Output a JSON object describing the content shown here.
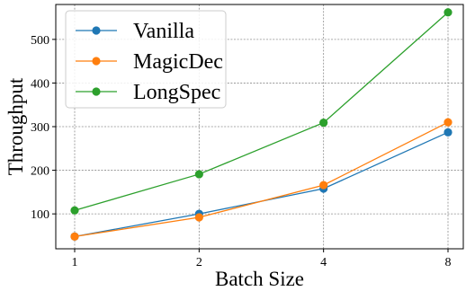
{
  "chart_data": {
    "type": "line",
    "xlabel": "Batch Size",
    "ylabel": "Throughput",
    "categories": [
      "1",
      "2",
      "4",
      "8"
    ],
    "x": [
      1,
      2,
      4,
      8
    ],
    "xscale": "log2",
    "xticks": [
      "1",
      "2",
      "4",
      "8"
    ],
    "yticks": [
      100,
      200,
      300,
      400,
      500
    ],
    "ylim": [
      20,
      580
    ],
    "grid": true,
    "legend": "top-left",
    "series": [
      {
        "name": "Vanilla",
        "color": "#1f77b4",
        "values": [
          48,
          100,
          158,
          287
        ]
      },
      {
        "name": "MagicDec",
        "color": "#ff7f0e",
        "values": [
          48,
          92,
          166,
          310
        ]
      },
      {
        "name": "LongSpec",
        "color": "#2ca02c",
        "values": [
          108,
          191,
          309,
          562
        ]
      }
    ]
  }
}
